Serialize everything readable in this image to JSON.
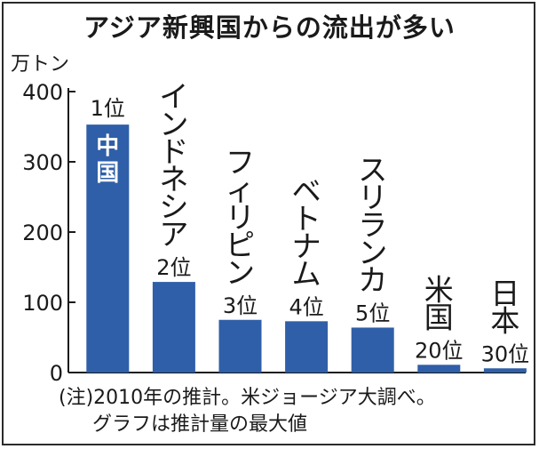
{
  "chart_data": {
    "type": "bar",
    "title": "アジア新興国からの流出が多い",
    "unit": "万トン",
    "categories": [
      "中国",
      "インドネシア",
      "フィリピン",
      "ベトナム",
      "スリランカ",
      "米国",
      "日本"
    ],
    "values": [
      353,
      129,
      75,
      73,
      64,
      11,
      6
    ],
    "ranks": [
      "1位",
      "2位",
      "3位",
      "4位",
      "5位",
      "20位",
      "30位"
    ],
    "yticks": [
      "0",
      "100",
      "200",
      "300",
      "400"
    ],
    "ylim": [
      0,
      400
    ],
    "bar_color": "#2f5fa8",
    "grid": false
  },
  "notes": {
    "line1": "(注)2010年の推計。米ジョージア大調べ。",
    "line2": "グラフは推計量の最大値"
  }
}
